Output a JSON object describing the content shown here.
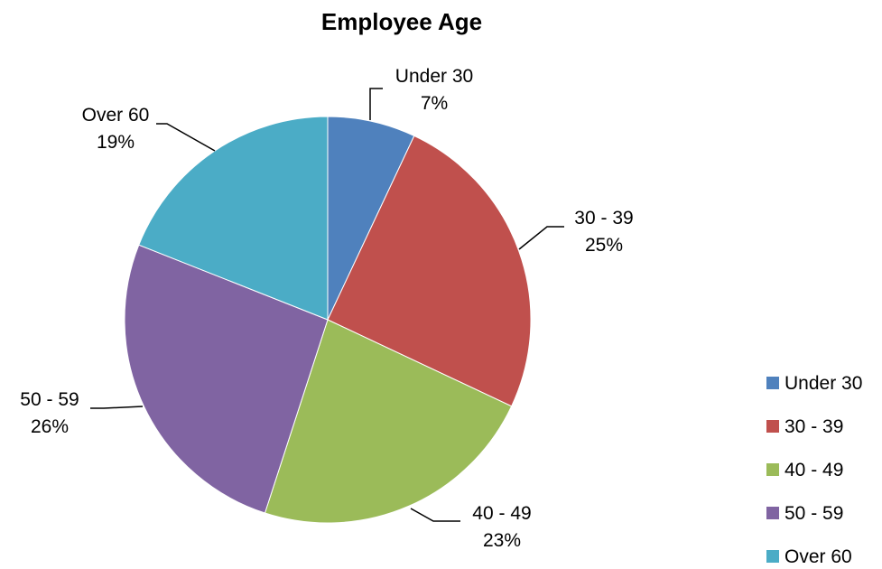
{
  "chart_data": {
    "type": "pie",
    "title": "Employee Age",
    "legend_position": "right",
    "categories": [
      "Under 30",
      "30 - 39",
      "40 - 49",
      "50 - 59",
      "Over 60"
    ],
    "values": [
      7,
      25,
      23,
      26,
      19
    ],
    "value_labels": [
      "7%",
      "25%",
      "23%",
      "26%",
      "19%"
    ],
    "colors": [
      "#4F81BD",
      "#C0504D",
      "#9BBB59",
      "#8064A2",
      "#4BACC6"
    ]
  }
}
